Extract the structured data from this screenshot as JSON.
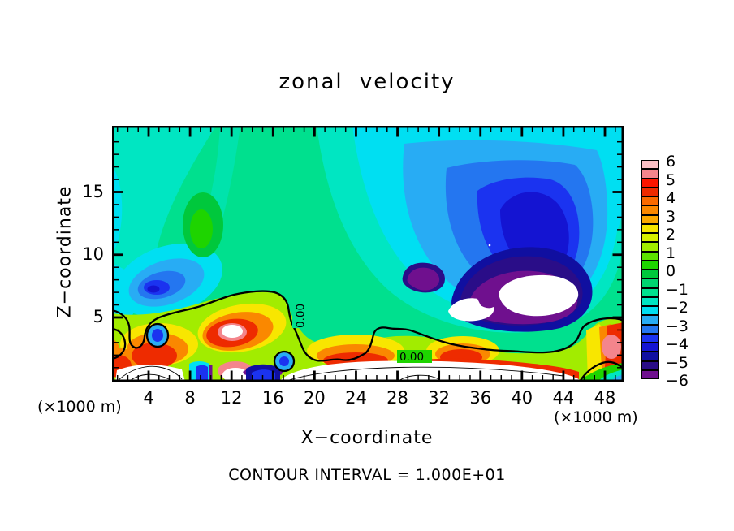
{
  "title": "zonal velocity",
  "plot": {
    "x_axis": {
      "label": "X−coordinate",
      "unit": "(×1000 m)",
      "tick_labels": [
        "4",
        "8",
        "12",
        "16",
        "20",
        "24",
        "28",
        "32",
        "36",
        "40",
        "44",
        "48"
      ],
      "tick_values": [
        4,
        8,
        12,
        16,
        20,
        24,
        28,
        32,
        36,
        40,
        44,
        48
      ]
    },
    "z_axis": {
      "label": "Z−coordinate",
      "tick_labels": [
        "5",
        "10",
        "15"
      ],
      "tick_values": [
        5,
        10,
        15
      ]
    },
    "footer": "CONTOUR INTERVAL = 1.000E+01",
    "zero_contour_label": "0.00"
  },
  "colorbar": {
    "tick_labels": [
      "6",
      "5",
      "4",
      "3",
      "2",
      "1",
      "0",
      "−1",
      "−2",
      "−3",
      "−4",
      "−5",
      "−6"
    ],
    "cell_colors": [
      "#FBC0C5",
      "#F4858C",
      "#FB1500",
      "#EE2B00",
      "#F96A00",
      "#FA8800",
      "#FCA800",
      "#F8E600",
      "#D8F000",
      "#A2EC00",
      "#5CE000",
      "#1ED400",
      "#00C83C",
      "#00D470",
      "#00E08E",
      "#00E6C2",
      "#00DFF2",
      "#28ACF4",
      "#2476F0",
      "#1B33F0",
      "#1414D2",
      "#100FA0",
      "#2A0D88",
      "#6F108E"
    ]
  },
  "chart_data": {
    "type": "heatmap",
    "subtype": "filled-contour",
    "title": "zonal velocity",
    "xlabel": "X−coordinate (×1000 m)",
    "ylabel": "Z−coordinate (×1000 m)",
    "x_ticks": [
      4,
      8,
      12,
      16,
      20,
      24,
      28,
      32,
      36,
      40,
      44,
      48
    ],
    "x_minor_tick_step": 1,
    "x_range": [
      0.5,
      49.8
    ],
    "z_ticks": [
      5,
      10,
      15
    ],
    "z_minor_tick_step": 1,
    "z_range": [
      0,
      20.3
    ],
    "colorbar_tick_labels": [
      6,
      5,
      4,
      3,
      2,
      1,
      0,
      -1,
      -2,
      -3,
      -4,
      -5,
      -6
    ],
    "colorbar_cells": 24,
    "contour_interval": "1.000E+01",
    "zero_contour_label": "0.00",
    "legend_position": "right-colorbar",
    "grid": false,
    "features": [
      "uniform sea-green background (~ -1) over most of upper domain",
      "cyan fan bands along upper-left edge",
      "blue minimum blob near x=6, z=8 on left side",
      "small bright-green maximum near x=10, z=12",
      "large negative (blue) dome on right half centered near x=36, z=10",
      "purple / below -6 white holes near x=37-45, z=5-8",
      "positive (yellow-orange-red) shallow layer along bottom with white >+6 cores near x=11 and x=47",
      "thick 0.00 contour separating bottom positive layer from interior",
      "thin contour arcs inside white bottom regions"
    ]
  }
}
